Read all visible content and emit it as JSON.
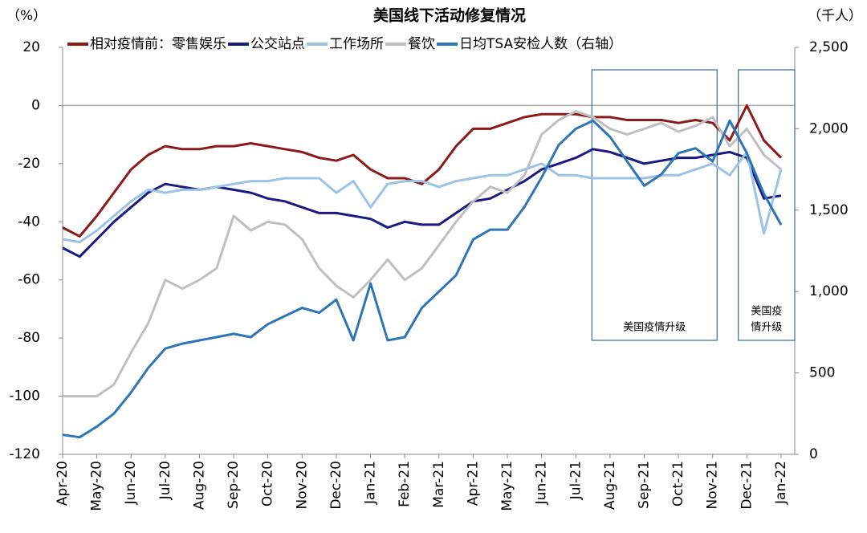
{
  "chart_data": {
    "type": "line",
    "title": "美国线下活动修复情况",
    "y_label": "（%）",
    "y2_label": "（千人）",
    "x": [
      0,
      0.5,
      1,
      1.5,
      2,
      2.5,
      3,
      3.5,
      4,
      4.5,
      5,
      5.5,
      6,
      6.5,
      7,
      7.5,
      8,
      8.5,
      9,
      9.5,
      10,
      10.5,
      11,
      11.5,
      12,
      12.5,
      13,
      13.5,
      14,
      14.5,
      15,
      15.5,
      16,
      16.5,
      17,
      17.5,
      18,
      18.5,
      19,
      19.5,
      20,
      20.5,
      21
    ],
    "xlim": [
      0,
      21.4
    ],
    "xticks": [
      {
        "value": 0,
        "label": "Apr-20"
      },
      {
        "value": 1,
        "label": "May-20"
      },
      {
        "value": 2,
        "label": "Jun-20"
      },
      {
        "value": 3,
        "label": "Jul-20"
      },
      {
        "value": 4,
        "label": "Aug-20"
      },
      {
        "value": 5,
        "label": "Sep-20"
      },
      {
        "value": 6,
        "label": "Oct-20"
      },
      {
        "value": 7,
        "label": "Nov-20"
      },
      {
        "value": 8,
        "label": "Dec-20"
      },
      {
        "value": 9,
        "label": "Jan-21"
      },
      {
        "value": 10,
        "label": "Feb-21"
      },
      {
        "value": 11,
        "label": "Mar-21"
      },
      {
        "value": 12,
        "label": "Apr-21"
      },
      {
        "value": 13,
        "label": "May-21"
      },
      {
        "value": 14,
        "label": "Jun-21"
      },
      {
        "value": 15,
        "label": "Jul-21"
      },
      {
        "value": 16,
        "label": "Aug-21"
      },
      {
        "value": 17,
        "label": "Sep-21"
      },
      {
        "value": 18,
        "label": "Oct-21"
      },
      {
        "value": 19,
        "label": "Nov-21"
      },
      {
        "value": 20,
        "label": "Dec-21"
      },
      {
        "value": 21,
        "label": "Jan-22"
      }
    ],
    "ylim": [
      -120,
      20
    ],
    "yticks": [
      -120,
      -100,
      -80,
      -60,
      -40,
      -20,
      0,
      20
    ],
    "y2lim": [
      0,
      2500
    ],
    "y2ticks": [
      0,
      500,
      {
        "value": 1000,
        "label": "1,000"
      },
      {
        "value": 1500,
        "label": "1,500"
      },
      {
        "value": 2000,
        "label": "2,000"
      },
      {
        "value": 2500,
        "label": "2,500"
      }
    ],
    "series": [
      {
        "name": "相对疫情前：零售娱乐",
        "color": "#8b1a1a",
        "values": [
          -42,
          -45,
          -38,
          -30,
          -22,
          -17,
          -14,
          -15,
          -15,
          -14,
          -14,
          -13,
          -14,
          -15,
          -16,
          -18,
          -19,
          -17,
          -22,
          -25,
          -25,
          -27,
          -22,
          -14,
          -8,
          -8,
          -6,
          -4,
          -3,
          -3,
          -3,
          -4,
          -4,
          -5,
          -5,
          -5,
          -6,
          -5,
          -6,
          -12,
          0,
          -12,
          -18
        ]
      },
      {
        "name": "公交站点",
        "color": "#1a1a80",
        "values": [
          -49,
          -52,
          -46,
          -40,
          -35,
          -30,
          -27,
          -28,
          -29,
          -28,
          -29,
          -30,
          -32,
          -33,
          -35,
          -37,
          -37,
          -38,
          -39,
          -42,
          -40,
          -41,
          -41,
          -37,
          -33,
          -32,
          -29,
          -26,
          -22,
          -20,
          -18,
          -15,
          -16,
          -18,
          -20,
          -19,
          -18,
          -18,
          -17,
          -16,
          -18,
          -32,
          -31
        ]
      },
      {
        "name": "工作场所",
        "color": "#9cc3e6",
        "values": [
          -46,
          -47,
          -43,
          -38,
          -33,
          -29,
          -30,
          -29,
          -29,
          -28,
          -27,
          -26,
          -26,
          -25,
          -25,
          -25,
          -30,
          -26,
          -35,
          -27,
          -26,
          -26,
          -28,
          -26,
          -25,
          -24,
          -24,
          -22,
          -20,
          -24,
          -24,
          -25,
          -25,
          -25,
          -25,
          -24,
          -24,
          -22,
          -20,
          -24,
          -16,
          -44,
          -22
        ]
      },
      {
        "name": "餐饮",
        "color": "#bfbfbf",
        "values": [
          -100,
          -100,
          -100,
          -96,
          -85,
          -75,
          -60,
          -63,
          -60,
          -56,
          -38,
          -43,
          -40,
          -41,
          -46,
          -56,
          -62,
          -66,
          -60,
          -53,
          -60,
          -56,
          -48,
          -40,
          -33,
          -28,
          -30,
          -24,
          -10,
          -5,
          -2,
          -4,
          -8,
          -10,
          -8,
          -6,
          -9,
          -7,
          -4,
          -14,
          -8,
          -17,
          -22
        ]
      },
      {
        "name": "日均TSA安检人数（右轴）",
        "color": "#2e75b6",
        "axis": "y2",
        "values": [
          120,
          105,
          170,
          250,
          380,
          530,
          650,
          680,
          700,
          720,
          740,
          720,
          800,
          850,
          900,
          870,
          950,
          700,
          1050,
          700,
          720,
          900,
          1000,
          1100,
          1320,
          1380,
          1380,
          1520,
          1700,
          1900,
          2000,
          2050,
          1950,
          1800,
          1650,
          1720,
          1850,
          1880,
          1800,
          2050,
          1850,
          1600,
          1410
        ]
      }
    ],
    "annotations": [
      {
        "lines": [
          "美国疫情升级"
        ]
      },
      {
        "lines": [
          "美国疫",
          "情升级"
        ]
      }
    ]
  }
}
